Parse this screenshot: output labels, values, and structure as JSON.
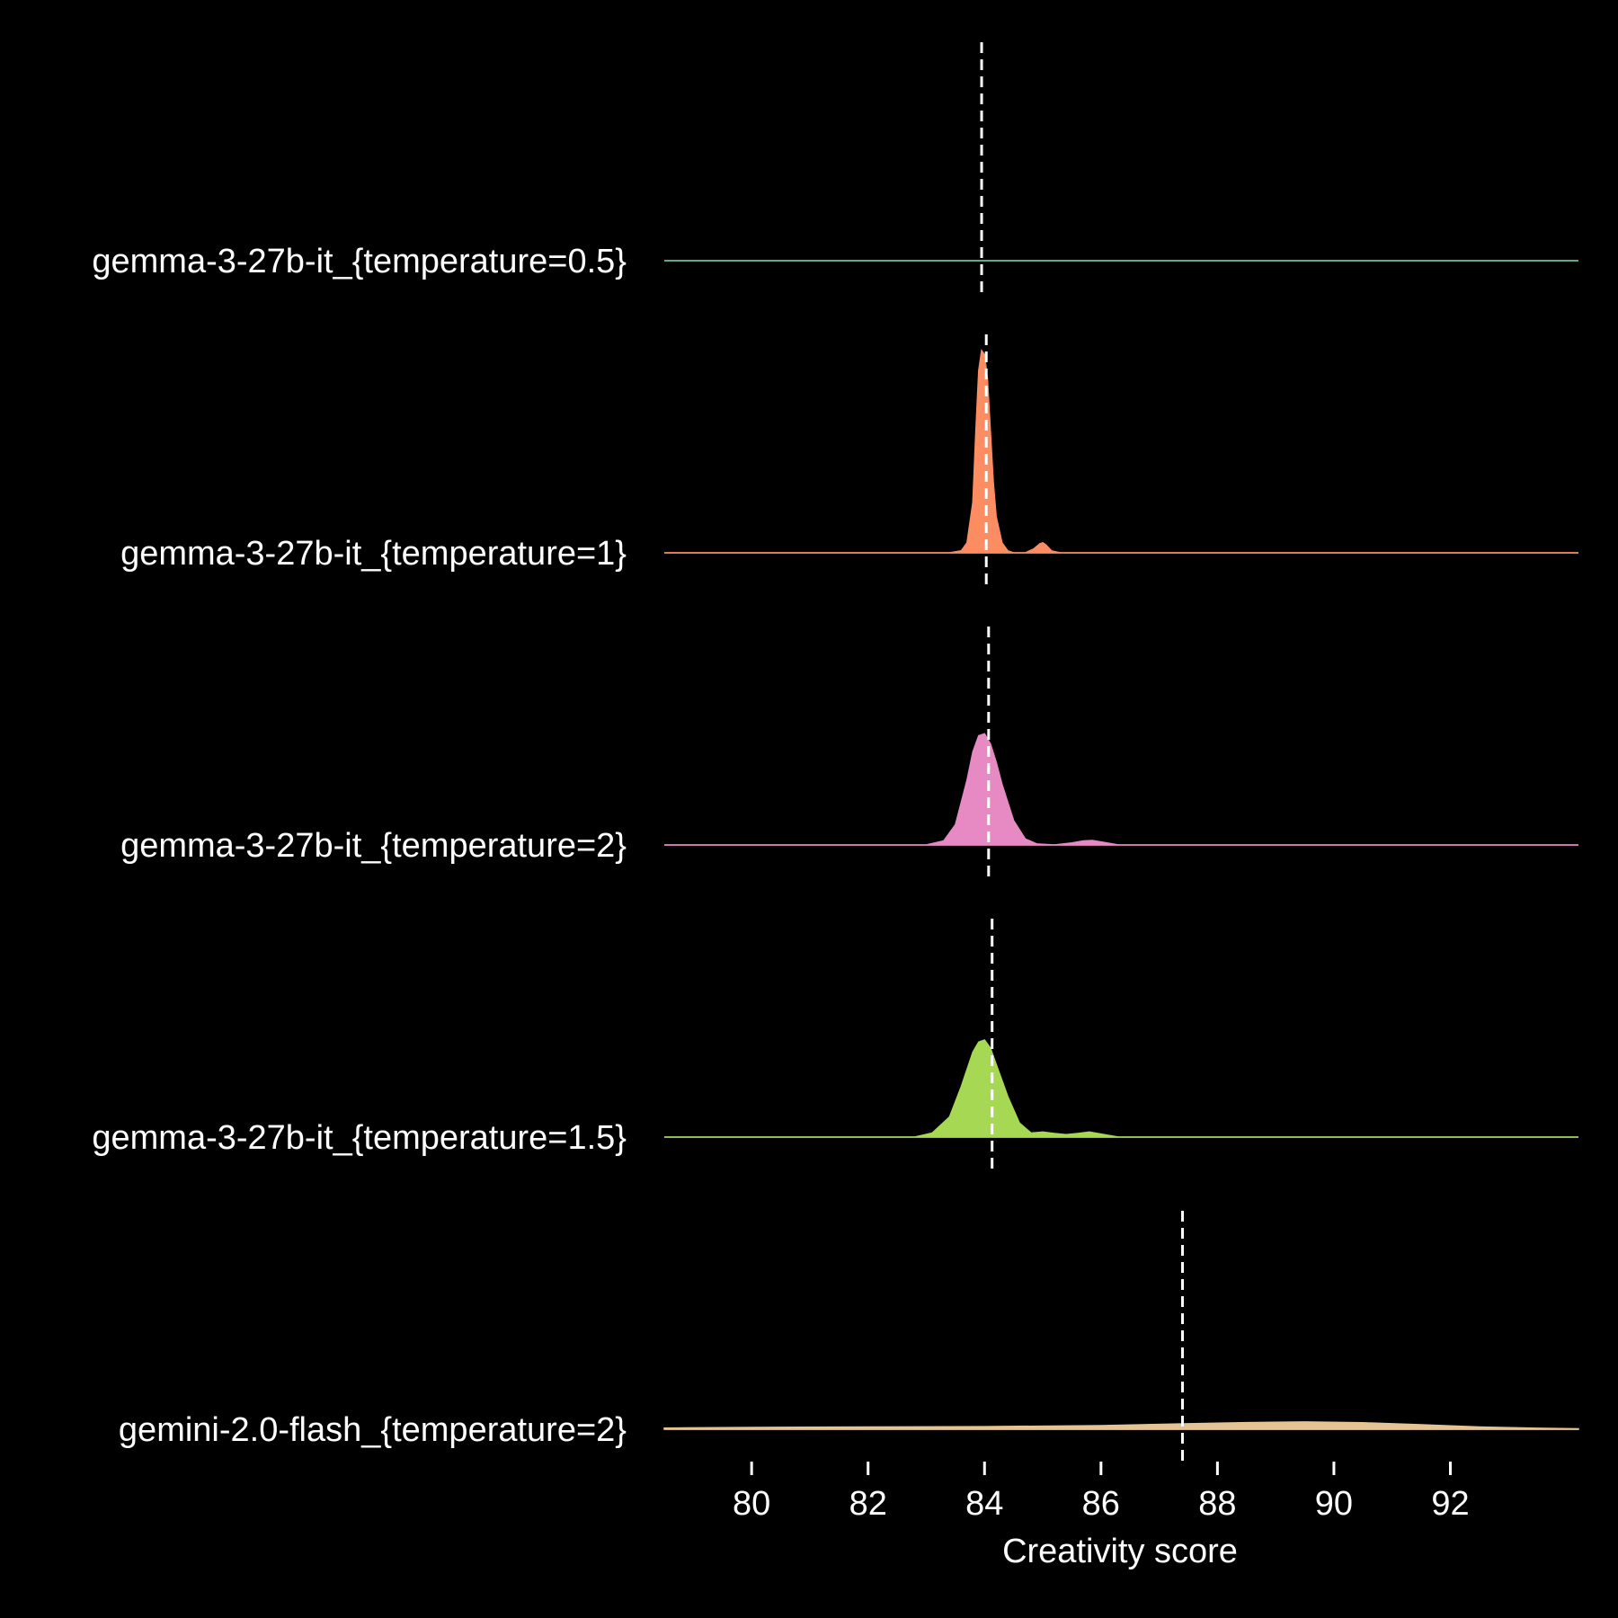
{
  "chart_data": {
    "type": "area",
    "subtype": "ridgeline-density",
    "title": "",
    "xlabel": "Creativity score",
    "ylabel": "",
    "xlim": [
      78.5,
      94.2
    ],
    "xticks": [
      80,
      82,
      84,
      86,
      88,
      90,
      92
    ],
    "grid": false,
    "legend": "none",
    "dashed_line_color": "#ffffff",
    "series": [
      {
        "name": "gemma-3-27b-it_{temperature=0.5}",
        "color": "#66c2a5",
        "mean": 83.95,
        "peak_height": 0.0,
        "x": [
          78.5,
          94.2
        ],
        "density": [
          0,
          0
        ]
      },
      {
        "name": "gemma-3-27b-it_{temperature=1}",
        "color": "#fc8d62",
        "mean": 84.03,
        "peak_height": 1.0,
        "x": [
          78.5,
          83.4,
          83.6,
          83.7,
          83.8,
          83.85,
          83.9,
          83.95,
          84.0,
          84.05,
          84.1,
          84.15,
          84.2,
          84.3,
          84.4,
          84.5,
          84.7,
          84.85,
          84.95,
          85.0,
          85.05,
          85.15,
          85.3,
          94.2
        ],
        "density": [
          0,
          0,
          0.01,
          0.05,
          0.25,
          0.6,
          0.9,
          1.0,
          0.98,
          0.86,
          0.6,
          0.35,
          0.18,
          0.05,
          0.01,
          0,
          0,
          0.02,
          0.045,
          0.05,
          0.04,
          0.01,
          0,
          0
        ]
      },
      {
        "name": "gemma-3-27b-it_{temperature=2}",
        "color": "#e78ac3",
        "mean": 84.07,
        "peak_height": 0.56,
        "x": [
          78.5,
          83.0,
          83.3,
          83.5,
          83.7,
          83.8,
          83.9,
          84.0,
          84.1,
          84.2,
          84.3,
          84.5,
          84.7,
          84.9,
          85.2,
          85.5,
          85.7,
          85.85,
          86.0,
          86.3,
          94.2
        ],
        "density": [
          0,
          0,
          0.02,
          0.1,
          0.32,
          0.46,
          0.54,
          0.55,
          0.5,
          0.41,
          0.3,
          0.12,
          0.03,
          0.005,
          0,
          0.01,
          0.02,
          0.022,
          0.015,
          0,
          0
        ]
      },
      {
        "name": "gemma-3-27b-it_{temperature=1.5}",
        "color": "#a6d854",
        "mean": 84.13,
        "peak_height": 0.5,
        "x": [
          78.5,
          82.8,
          83.1,
          83.4,
          83.6,
          83.8,
          83.9,
          84.0,
          84.1,
          84.2,
          84.4,
          84.6,
          84.8,
          85.0,
          85.2,
          85.4,
          85.6,
          85.8,
          86.0,
          86.3,
          94.2
        ],
        "density": [
          0,
          0,
          0.02,
          0.1,
          0.25,
          0.42,
          0.47,
          0.48,
          0.44,
          0.36,
          0.2,
          0.07,
          0.02,
          0.025,
          0.018,
          0.012,
          0.018,
          0.025,
          0.015,
          0,
          0
        ]
      },
      {
        "name": "gemini-2.0-flash_{temperature=2}",
        "color": "#e5c494",
        "mean": 87.4,
        "peak_height": 0.04,
        "x": [
          78.5,
          80.0,
          82.0,
          84.0,
          86.0,
          87.5,
          88.5,
          89.5,
          90.5,
          91.5,
          92.5,
          93.5,
          94.2
        ],
        "density": [
          0.006,
          0.009,
          0.011,
          0.013,
          0.018,
          0.027,
          0.033,
          0.036,
          0.032,
          0.022,
          0.011,
          0.005,
          0.002
        ]
      }
    ]
  }
}
